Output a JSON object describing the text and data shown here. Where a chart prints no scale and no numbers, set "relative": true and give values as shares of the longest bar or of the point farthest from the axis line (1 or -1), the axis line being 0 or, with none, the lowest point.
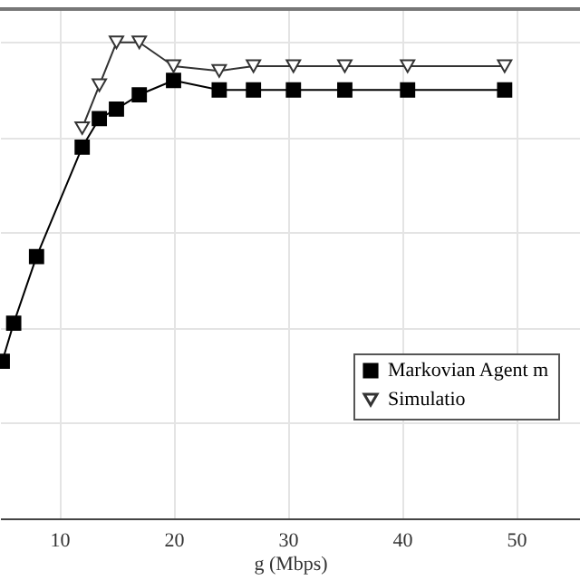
{
  "chart_data": {
    "type": "line",
    "xlabel": "g (Mbps)",
    "relative": true,
    "xlim": [
      4.8,
      55.6
    ],
    "xticks": [
      10,
      20,
      30,
      40,
      50
    ],
    "grid": true,
    "legend": "right",
    "series": [
      {
        "name": "Markovian Agent m",
        "color": "#000000",
        "marker": "square",
        "x": [
          5,
          6,
          8,
          12,
          13.5,
          15,
          17,
          20,
          24,
          27,
          30.5,
          35,
          40.5,
          49
        ],
        "values": [
          0.33,
          0.41,
          0.55,
          0.78,
          0.84,
          0.86,
          0.89,
          0.92,
          0.9,
          0.9,
          0.9,
          0.9,
          0.9,
          0.9
        ]
      },
      {
        "name": "Simulatio",
        "color": "#333333",
        "marker": "triangle",
        "x": [
          12,
          13.5,
          15,
          17,
          20,
          24,
          27,
          30.5,
          35,
          40.5,
          49
        ],
        "values": [
          0.82,
          0.91,
          1.0,
          1.0,
          0.95,
          0.94,
          0.95,
          0.95,
          0.95,
          0.95,
          0.95
        ]
      }
    ]
  }
}
